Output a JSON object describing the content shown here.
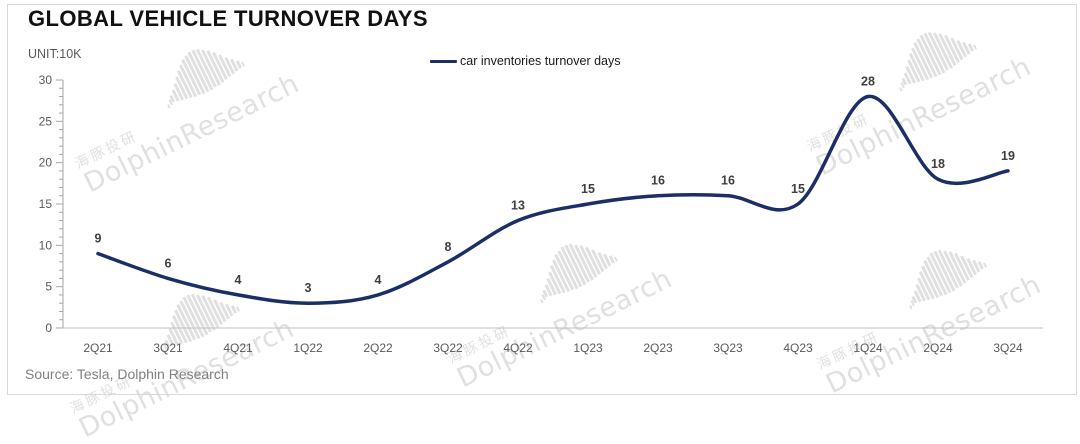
{
  "header": {
    "title": "GLOBAL VEHICLE TURNOVER DAYS",
    "unit": "UNIT:10K"
  },
  "legend": {
    "label": "car inventories turnover days"
  },
  "footer": {
    "source": "Source: Tesla, Dolphin Research"
  },
  "watermark": {
    "cn": "海豚投研",
    "en": "DolphinResearch"
  },
  "colors": {
    "line": "#1b2f66",
    "y_axis": "#a6a6a6",
    "x_axis": "#bfbfbf",
    "tick_label": "#595959",
    "data_label": "#3f3f3f"
  },
  "chart_data": {
    "type": "line",
    "title": "GLOBAL VEHICLE TURNOVER DAYS",
    "unit": "10K",
    "categories": [
      "2Q21",
      "3Q21",
      "4Q21",
      "1Q22",
      "2Q22",
      "3Q22",
      "4Q22",
      "1Q23",
      "2Q23",
      "3Q23",
      "4Q23",
      "1Q24",
      "2Q24",
      "3Q24"
    ],
    "series": [
      {
        "name": "car inventories turnover days",
        "values": [
          9,
          6,
          4,
          3,
          4,
          8,
          13,
          15,
          16,
          16,
          15,
          28,
          18,
          19
        ]
      }
    ],
    "ylim": [
      0,
      30
    ],
    "y_ticks": [
      0,
      5,
      10,
      15,
      20,
      25,
      30
    ],
    "minor_tick_step": 1,
    "grid": false,
    "smooth": true,
    "legend_position": "top-center",
    "data_labels": true
  }
}
